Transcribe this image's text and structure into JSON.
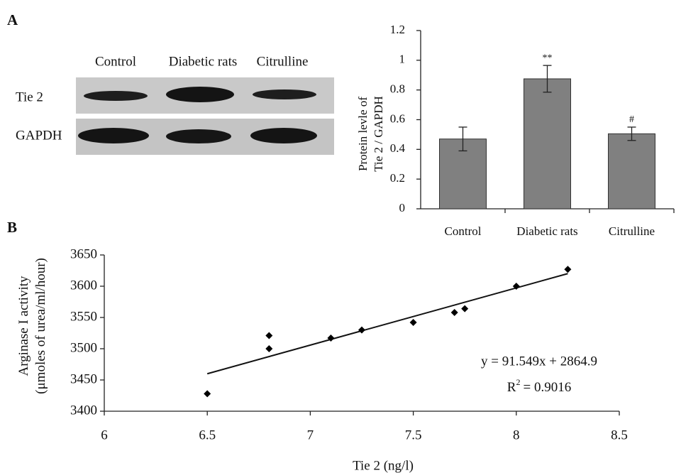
{
  "panels": [
    "A",
    "B"
  ],
  "blot": {
    "lanes": [
      "Control",
      "Diabetic rats",
      "Citrulline"
    ],
    "rows": [
      "Tie 2",
      "GAPDH"
    ]
  },
  "chart_data": [
    {
      "type": "bar",
      "ylabel": [
        "Protein levle of",
        "Tie 2 / GAPDH"
      ],
      "categories": [
        "Control",
        "Diabetic rats",
        "Citrulline"
      ],
      "values": [
        0.47,
        0.875,
        0.505
      ],
      "errors": [
        0.08,
        0.09,
        0.045
      ],
      "annotations": [
        null,
        "**",
        "#"
      ],
      "color": "#808080",
      "ylim": [
        0,
        1.2
      ],
      "yticks": [
        0,
        0.2,
        0.4,
        0.6,
        0.8,
        1,
        1.2
      ],
      "grid": false
    },
    {
      "type": "scatter",
      "xlabel": "Tie 2 (ng/l)",
      "ylabel": [
        "Arginase I activity",
        "(μmoles of urea/ml/hour)"
      ],
      "x": [
        6.5,
        6.8,
        6.8,
        7.1,
        7.25,
        7.5,
        7.7,
        7.75,
        8,
        8.25
      ],
      "y": [
        3428,
        3521,
        3500,
        3517,
        3530,
        3542,
        3558,
        3564,
        3600,
        3627
      ],
      "color": "#000000",
      "trendline": {
        "slope": 91.549,
        "intercept": 2864.9,
        "equation": "y = 91.549x + 2864.9",
        "r2": {
          "symbol": "R",
          "exponent": "2",
          "value_text": "= 0.9016"
        }
      },
      "xlim": [
        6,
        8.5
      ],
      "xticks": [
        6,
        6.5,
        7,
        7.5,
        8,
        8.5
      ],
      "ylim": [
        3400,
        3650
      ],
      "yticks": [
        3400,
        3450,
        3500,
        3550,
        3600,
        3650
      ],
      "grid": false
    }
  ]
}
